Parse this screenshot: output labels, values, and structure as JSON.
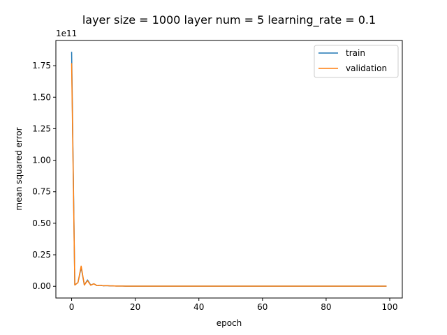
{
  "chart_data": {
    "type": "line",
    "title": "layer size = 1000 layer num = 5 learning_rate = 0.1",
    "xlabel": "epoch",
    "ylabel": "mean squared error",
    "y_offset_label": "1e11",
    "y_scale": 100000000000.0,
    "xlim": [
      -4.95,
      103.95
    ],
    "ylim": [
      -0.093,
      1.95
    ],
    "x_ticks": [
      0,
      20,
      40,
      60,
      80,
      100
    ],
    "x_tick_labels": [
      "0",
      "20",
      "40",
      "60",
      "80",
      "100"
    ],
    "y_ticks": [
      0.0,
      0.25,
      0.5,
      0.75,
      1.0,
      1.25,
      1.5,
      1.75
    ],
    "y_tick_labels": [
      "0.00",
      "0.25",
      "0.50",
      "0.75",
      "1.00",
      "1.25",
      "1.50",
      "1.75"
    ],
    "grid": false,
    "legend_position": "top-right",
    "x": [
      0,
      1,
      2,
      3,
      4,
      5,
      6,
      7,
      8,
      9,
      10,
      11,
      12,
      13,
      14,
      15,
      16,
      17,
      18,
      19,
      20,
      21,
      22,
      23,
      24,
      25,
      26,
      27,
      28,
      29,
      30,
      31,
      32,
      33,
      34,
      35,
      36,
      37,
      38,
      39,
      40,
      41,
      42,
      43,
      44,
      45,
      46,
      47,
      48,
      49,
      50,
      51,
      52,
      53,
      54,
      55,
      56,
      57,
      58,
      59,
      60,
      61,
      62,
      63,
      64,
      65,
      66,
      67,
      68,
      69,
      70,
      71,
      72,
      73,
      74,
      75,
      76,
      77,
      78,
      79,
      80,
      81,
      82,
      83,
      84,
      85,
      86,
      87,
      88,
      89,
      90,
      91,
      92,
      93,
      94,
      95,
      96,
      97,
      98,
      99
    ],
    "series": [
      {
        "name": "train",
        "color": "#1f77b4",
        "values": [
          1.86,
          0.01,
          0.03,
          0.15,
          0.01,
          0.05,
          0.01,
          0.02,
          0.005,
          0.008,
          0.004,
          0.005,
          0.003,
          0.003,
          0.002,
          0.002,
          0.002,
          0.001,
          0.001,
          0.001,
          0.001,
          0.001,
          0.001,
          0.001,
          0.001,
          0.001,
          0.001,
          0.001,
          0.001,
          0.001,
          0.001,
          0.001,
          0.001,
          0.001,
          0.001,
          0.001,
          0.001,
          0.001,
          0.001,
          0.001,
          0.001,
          0.001,
          0.001,
          0.001,
          0.001,
          0.001,
          0.001,
          0.001,
          0.001,
          0.001,
          0.001,
          0.001,
          0.001,
          0.001,
          0.001,
          0.001,
          0.001,
          0.001,
          0.001,
          0.001,
          0.001,
          0.001,
          0.001,
          0.001,
          0.001,
          0.001,
          0.001,
          0.001,
          0.001,
          0.001,
          0.001,
          0.001,
          0.001,
          0.001,
          0.001,
          0.001,
          0.001,
          0.001,
          0.001,
          0.001,
          0.001,
          0.001,
          0.001,
          0.001,
          0.001,
          0.001,
          0.001,
          0.001,
          0.001,
          0.001,
          0.001,
          0.001,
          0.001,
          0.001,
          0.001,
          0.001,
          0.001,
          0.001,
          0.001,
          0.001
        ]
      },
      {
        "name": "validation",
        "color": "#ff7f0e",
        "values": [
          1.77,
          0.01,
          0.03,
          0.16,
          0.01,
          0.045,
          0.008,
          0.02,
          0.005,
          0.008,
          0.004,
          0.005,
          0.003,
          0.003,
          0.002,
          0.002,
          0.002,
          0.001,
          0.001,
          0.001,
          0.001,
          0.001,
          0.001,
          0.001,
          0.001,
          0.001,
          0.001,
          0.001,
          0.001,
          0.001,
          0.001,
          0.001,
          0.001,
          0.001,
          0.001,
          0.001,
          0.001,
          0.001,
          0.001,
          0.001,
          0.001,
          0.001,
          0.001,
          0.001,
          0.001,
          0.001,
          0.001,
          0.001,
          0.001,
          0.001,
          0.001,
          0.001,
          0.001,
          0.001,
          0.001,
          0.001,
          0.001,
          0.001,
          0.001,
          0.001,
          0.001,
          0.001,
          0.001,
          0.001,
          0.001,
          0.001,
          0.001,
          0.001,
          0.001,
          0.001,
          0.001,
          0.001,
          0.001,
          0.001,
          0.001,
          0.001,
          0.001,
          0.001,
          0.001,
          0.001,
          0.001,
          0.001,
          0.001,
          0.001,
          0.001,
          0.001,
          0.001,
          0.001,
          0.001,
          0.001,
          0.001,
          0.001,
          0.001,
          0.001,
          0.001,
          0.001,
          0.001,
          0.001,
          0.001,
          0.001
        ]
      }
    ]
  }
}
